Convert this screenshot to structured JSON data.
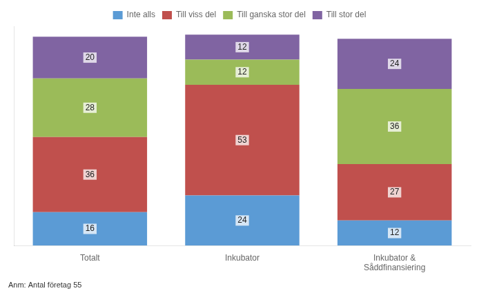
{
  "chart_data": {
    "type": "bar",
    "stacked": true,
    "categories": [
      "Totalt",
      "Inkubator",
      "Inkubator &\nSåddfinansiering"
    ],
    "series": [
      {
        "name": "Inte alls",
        "color": "#5b9bd5",
        "values": [
          16,
          24,
          12
        ]
      },
      {
        "name": "Till viss del",
        "color": "#c0504d",
        "values": [
          36,
          53,
          27
        ]
      },
      {
        "name": "Till ganska stor del",
        "color": "#9bbb59",
        "values": [
          28,
          12,
          36
        ]
      },
      {
        "name": "Till stor del",
        "color": "#8064a2",
        "values": [
          20,
          12,
          24
        ]
      }
    ],
    "ylim": [
      0,
      105.04
    ],
    "grid": false,
    "legend": "top",
    "data_labels": true,
    "tick_labels": "x",
    "annotations": [
      "Anm: Antal företag 55"
    ]
  }
}
